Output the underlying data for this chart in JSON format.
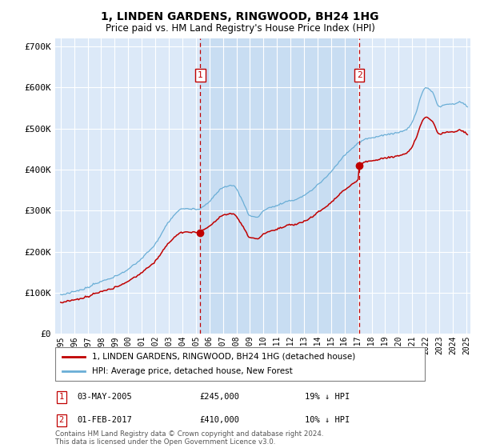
{
  "title": "1, LINDEN GARDENS, RINGWOOD, BH24 1HG",
  "subtitle": "Price paid vs. HM Land Registry's House Price Index (HPI)",
  "legend_property": "1, LINDEN GARDENS, RINGWOOD, BH24 1HG (detached house)",
  "legend_hpi": "HPI: Average price, detached house, New Forest",
  "footer": "Contains HM Land Registry data © Crown copyright and database right 2024.\nThis data is licensed under the Open Government Licence v3.0.",
  "transactions": [
    {
      "id": 1,
      "date": "03-MAY-2005",
      "price": 245000,
      "year": 2005.33,
      "hpi_pct": "19% ↓ HPI"
    },
    {
      "id": 2,
      "date": "01-FEB-2017",
      "price": 410000,
      "year": 2017.08,
      "hpi_pct": "10% ↓ HPI"
    }
  ],
  "ylim": [
    0,
    720000
  ],
  "yticks": [
    0,
    100000,
    200000,
    300000,
    400000,
    500000,
    600000,
    700000
  ],
  "ytick_labels": [
    "£0",
    "£100K",
    "£200K",
    "£300K",
    "£400K",
    "£500K",
    "£600K",
    "£700K"
  ],
  "plot_bg": "#dce9f8",
  "shade_bg": "#cce0f5",
  "hpi_color": "#6aaed6",
  "property_color": "#c00000",
  "vline_color": "#c00000",
  "box_color": "#c00000",
  "dot_color": "#c00000"
}
